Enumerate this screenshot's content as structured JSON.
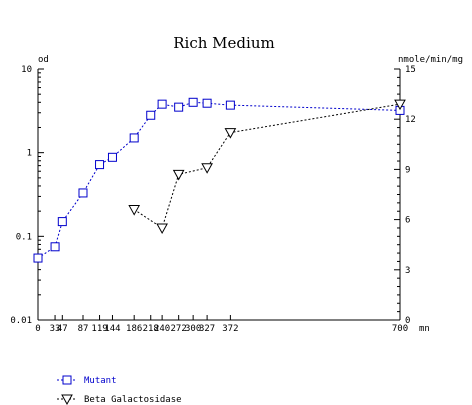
{
  "chart_data": {
    "type": "line",
    "title": "Rich Medium",
    "x": {
      "unit": "mn",
      "ticks": [
        0,
        33,
        47,
        87,
        119,
        144,
        186,
        218,
        240,
        272,
        300,
        327,
        372,
        700
      ],
      "tick_labels": [
        "0",
        "33",
        "47",
        "87",
        "119",
        "144",
        "186",
        "218",
        "240",
        "272",
        "300",
        "327",
        "372",
        "700"
      ],
      "range": [
        0,
        700
      ]
    },
    "y_left": {
      "unit": "od",
      "scale": "log",
      "range": [
        0.01,
        10
      ],
      "ticks": [
        0.01,
        0.1,
        1,
        10
      ],
      "tick_labels": [
        "0.01",
        "0.1",
        "1",
        "10"
      ]
    },
    "y_right": {
      "unit": "nmole/min/mg",
      "scale": "linear",
      "range": [
        0,
        15
      ],
      "ticks": [
        0,
        3,
        6,
        9,
        12,
        15
      ],
      "tick_labels": [
        "0",
        "3",
        "6",
        "9",
        "12",
        "15"
      ]
    },
    "grid": false,
    "legend_position": "bottom-left",
    "series": [
      {
        "name": "Mutant",
        "axis": "left",
        "color": "#0000cc",
        "marker": "square",
        "x": [
          0,
          33,
          47,
          87,
          119,
          144,
          186,
          218,
          240,
          272,
          300,
          327,
          372,
          700
        ],
        "y": [
          0.055,
          0.075,
          0.15,
          0.33,
          0.72,
          0.88,
          1.5,
          2.8,
          3.8,
          3.5,
          4.0,
          3.9,
          3.7,
          3.2
        ]
      },
      {
        "name": "Beta Galactosidase",
        "axis": "right",
        "color": "#000000",
        "marker": "triangle-down",
        "x": [
          186,
          240,
          272,
          327,
          372,
          700
        ],
        "y": [
          6.6,
          5.5,
          8.7,
          9.1,
          11.2,
          12.9
        ]
      }
    ]
  }
}
